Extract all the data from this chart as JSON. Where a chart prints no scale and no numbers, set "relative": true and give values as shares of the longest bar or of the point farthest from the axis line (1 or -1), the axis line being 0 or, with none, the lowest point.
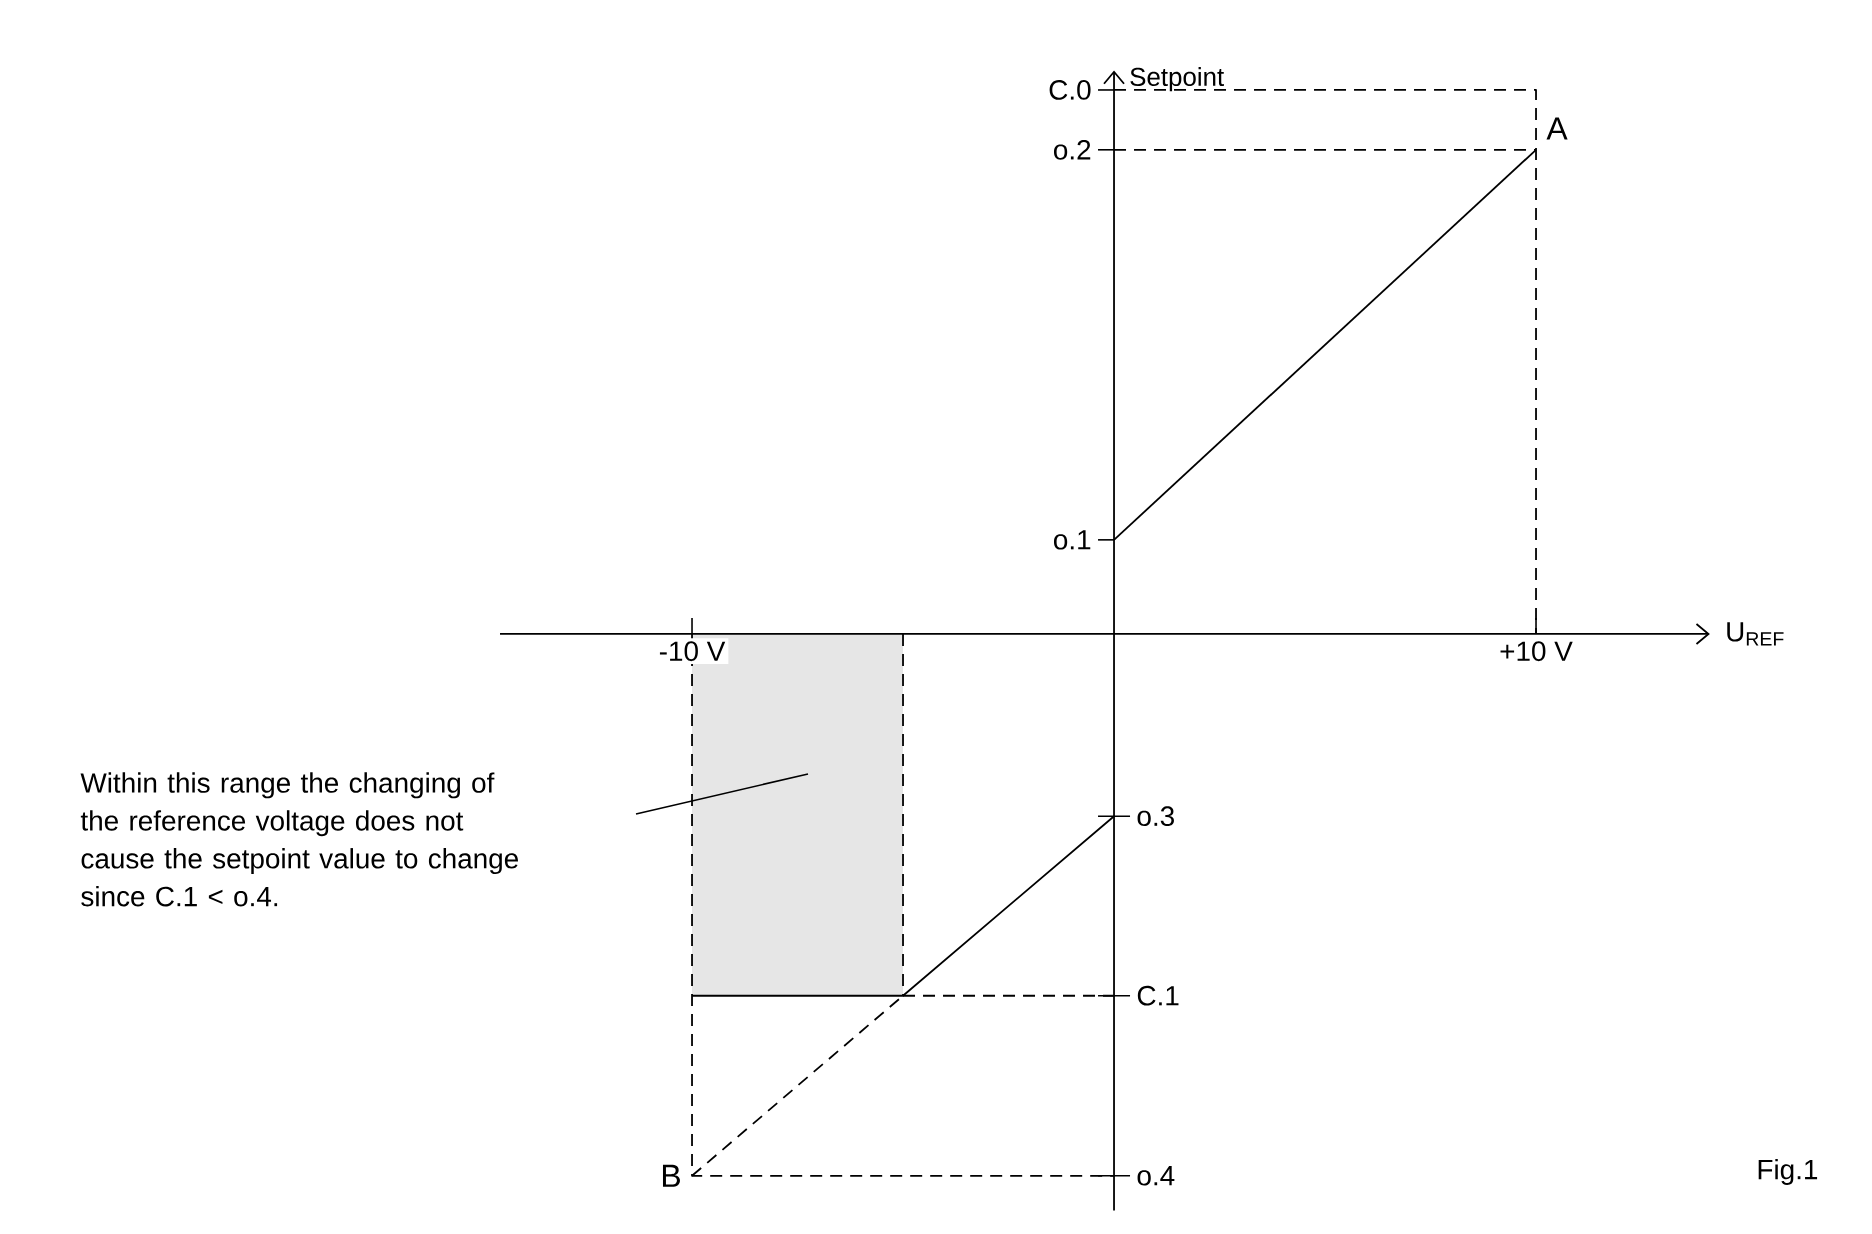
{
  "chart_data": {
    "type": "line",
    "relative": true,
    "xlabel": "U$_{REF}$",
    "ylabel": "Setpoint",
    "xlim": [
      -14.55,
      14.12
    ],
    "xticks": [
      {
        "value": -10,
        "label": "-10 V"
      },
      {
        "value": 10,
        "label": "+10 V"
      }
    ],
    "series": [
      {
        "type": "area",
        "color": "#e6e6e6",
        "x": [
          -10,
          -5
        ],
        "values": [
          -0.665,
          -0.665
        ]
      },
      {
        "color": "#000000",
        "x": [
          0,
          10
        ],
        "values": [
          0.173,
          0.89
        ]
      },
      {
        "color": "#000000",
        "x": [
          -10,
          -5,
          0
        ],
        "values": [
          -0.665,
          -0.665,
          -0.335
        ]
      },
      {
        "color": "#000000",
        "line_style": "dashed",
        "x": [
          0,
          10,
          10
        ],
        "values": [
          1,
          1,
          0
        ]
      },
      {
        "color": "#000000",
        "line_style": "dashed",
        "x": [
          0,
          10
        ],
        "values": [
          0.89,
          0.89
        ]
      },
      {
        "color": "#000000",
        "line_style": "dashed",
        "x": [
          -10,
          -10,
          0
        ],
        "values": [
          0,
          -0.996,
          -0.996
        ]
      },
      {
        "color": "#000000",
        "line_style": "dashed",
        "x": [
          -10,
          -5
        ],
        "values": [
          -0.996,
          -0.665
        ]
      },
      {
        "color": "#000000",
        "line_style": "dashed",
        "x": [
          -5,
          0
        ],
        "values": [
          -0.665,
          -0.665
        ]
      },
      {
        "color": "#000000",
        "line_style": "dashed",
        "x": [
          -5,
          -5
        ],
        "values": [
          0,
          -0.665
        ]
      }
    ],
    "annotations": [
      {
        "text": "A",
        "x": 10,
        "y": 0.89
      },
      {
        "text": "B",
        "x": -10,
        "y": -0.996
      },
      {
        "text": "C.0",
        "x": 0,
        "y": 1
      },
      {
        "text": "o.2",
        "x": 0,
        "y": 0.89
      },
      {
        "text": "o.1",
        "x": 0,
        "y": 0.173
      },
      {
        "text": "o.3",
        "x": 0,
        "y": -0.335
      },
      {
        "text": "C.1",
        "x": 0,
        "y": -0.665
      },
      {
        "text": "o.4",
        "x": 0,
        "y": -0.996
      },
      "Within this range the changing of the reference voltage does not cause the setpoint value to change since C.1 < o.4.",
      "Fig.1"
    ]
  }
}
